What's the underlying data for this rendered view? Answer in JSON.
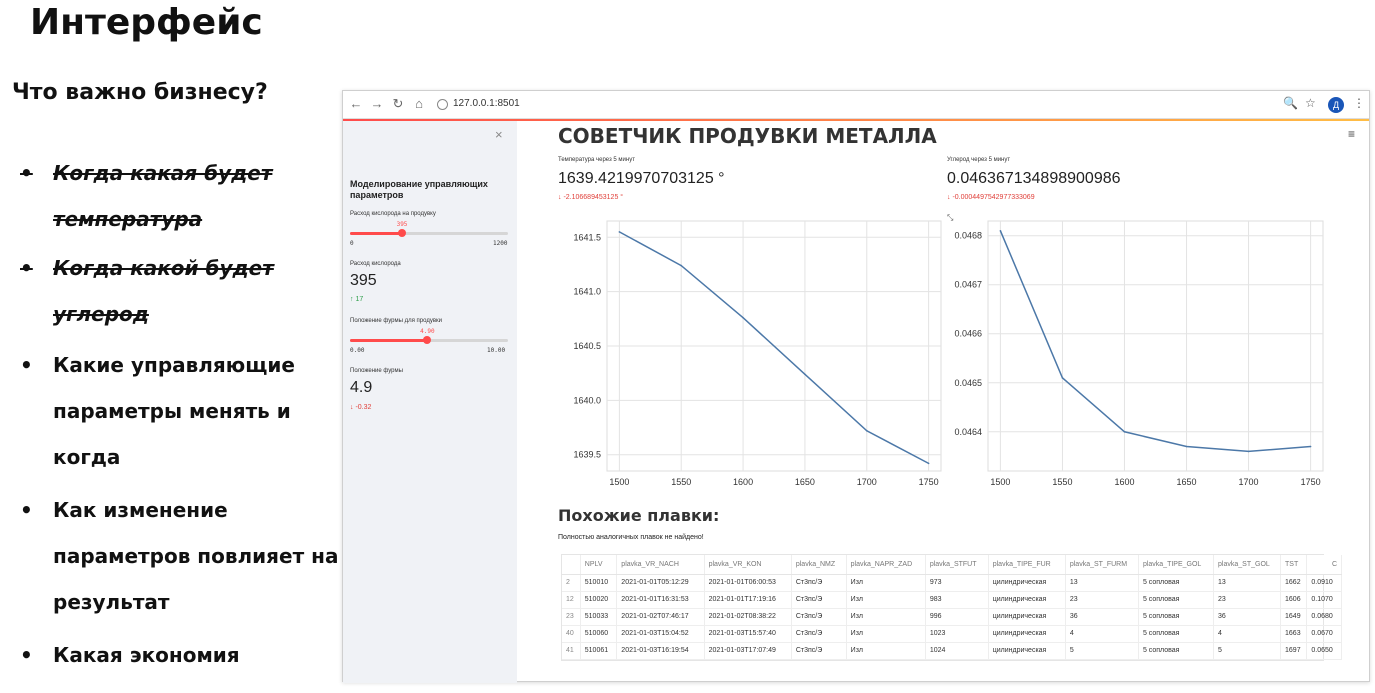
{
  "slide": {
    "title": "Интерфейс",
    "subtitle": "Что важно бизнесу?",
    "bullets": [
      {
        "bullet": "•",
        "text": "Когда какая будет\nтемпература",
        "struck": true
      },
      {
        "bullet": "•",
        "text": "Когда какой будет\nуглерод",
        "struck": true
      },
      {
        "bullet": "•",
        "text": "Какие управляющие\nпараметры менять и\nкогда",
        "struck": false
      },
      {
        "bullet": "•",
        "text": "Как изменение\nпараметров повлияет на\nрезультат",
        "struck": false
      },
      {
        "bullet": "•",
        "text": "Какая экономия",
        "struck": false
      }
    ]
  },
  "browser": {
    "url": "127.0.0.1:8501",
    "nav": {
      "back": "←",
      "forward": "→",
      "reload": "↻",
      "home": "⌂"
    },
    "icons": {
      "zoom": "🔍",
      "star": "☆",
      "menu": "⋮"
    },
    "avatar_letter": "Д"
  },
  "sidebar": {
    "close": "×",
    "heading": "Моделирование управляющих параметров",
    "oxygen_slider": {
      "label": "Расход кислорода на продувку",
      "value_text": "395",
      "min": "0",
      "max": "1200",
      "value": 395,
      "range": [
        0,
        1200
      ]
    },
    "oxygen_metric": {
      "label": "Расход кислорода",
      "value": "395",
      "delta": "↑ 17"
    },
    "lance_slider": {
      "label": "Положение фурмы для продувки",
      "value_text": "4.90",
      "min": "0.00",
      "max": "10.00",
      "value": 4.9,
      "range": [
        0,
        10
      ]
    },
    "lance_metric": {
      "label": "Положение фурмы",
      "value": "4.9",
      "delta": "↓ -0.32"
    }
  },
  "main": {
    "title": "СОВЕТЧИК ПРОДУВКИ МЕТАЛЛА",
    "hamburger": "≡",
    "expand_icon": "⤡",
    "temp_metric": {
      "label": "Температура через 5 минут",
      "value": "1639.4219970703125 °",
      "delta": "↓ -2.106689453125 °"
    },
    "carbon_metric": {
      "label": "Углерод через 5 минут",
      "value": "0.046367134898900986",
      "delta": "↓ -0.0004497542977333069"
    },
    "section_title": "Похожие плавки:",
    "section_note": "Полностью аналогичных плавок не найдено!",
    "table": {
      "columns": [
        "",
        "NPLV",
        "plavka_VR_NACH",
        "plavka_VR_KON",
        "plavka_NMZ",
        "plavka_NAPR_ZAD",
        "plavka_STFUT",
        "plavka_TIPE_FUR",
        "plavka_ST_FURM",
        "plavka_TIPE_GOL",
        "plavka_ST_GOL",
        "TST",
        "C"
      ],
      "rows": [
        [
          "2",
          "510010",
          "2021-01-01T05:12:29",
          "2021-01-01T06:00:53",
          "Ст3пс/Э",
          "Изл",
          "973",
          "цилиндрическая",
          "13",
          "5 сопловая",
          "13",
          "1662",
          "0.0910"
        ],
        [
          "12",
          "510020",
          "2021-01-01T16:31:53",
          "2021-01-01T17:19:16",
          "Ст3пс/Э",
          "Изл",
          "983",
          "цилиндрическая",
          "23",
          "5 сопловая",
          "23",
          "1606",
          "0.1070"
        ],
        [
          "23",
          "510033",
          "2021-01-02T07:46:17",
          "2021-01-02T08:38:22",
          "Ст3пс/Э",
          "Изл",
          "996",
          "цилиндрическая",
          "36",
          "5 сопловая",
          "36",
          "1649",
          "0.0680"
        ],
        [
          "40",
          "510060",
          "2021-01-03T15:04:52",
          "2021-01-03T15:57:40",
          "Ст3пс/Э",
          "Изл",
          "1023",
          "цилиндрическая",
          "4",
          "5 сопловая",
          "4",
          "1663",
          "0.0670"
        ],
        [
          "41",
          "510061",
          "2021-01-03T16:19:54",
          "2021-01-03T17:07:49",
          "Ст3пс/Э",
          "Изл",
          "1024",
          "цилиндрическая",
          "5",
          "5 сопловая",
          "5",
          "1697",
          "0.0650"
        ]
      ]
    }
  },
  "colors": {
    "accent": "#ff4b4b",
    "line": "#4c78a8",
    "sidebar_bg": "#f0f2f6",
    "delta_up": "#2e9e4a",
    "delta_down": "#e0403a"
  },
  "chart_data": [
    {
      "type": "line",
      "x": [
        1500,
        1550,
        1600,
        1650,
        1700,
        1750
      ],
      "y": [
        1641.55,
        1641.24,
        1640.76,
        1640.24,
        1639.72,
        1639.42
      ],
      "xlim": [
        1490,
        1760
      ],
      "ylim": [
        1639.35,
        1641.65
      ],
      "xticks": [
        "1500",
        "1550",
        "1600",
        "1650",
        "1700",
        "1750"
      ],
      "yticks": [
        1639.5,
        1640.0,
        1640.5,
        1641.0,
        1641.5
      ],
      "ytick_labels": [
        "1639.5",
        "1640.0",
        "1640.5",
        "1641.0",
        "1641.5"
      ],
      "grid": true
    },
    {
      "type": "line",
      "x": [
        1500,
        1550,
        1600,
        1650,
        1700,
        1750
      ],
      "y": [
        0.04681,
        0.04651,
        0.0464,
        0.04637,
        0.04636,
        0.04637
      ],
      "xlim": [
        1490,
        1760
      ],
      "ylim": [
        0.04632,
        0.04683
      ],
      "xticks": [
        "1500",
        "1550",
        "1600",
        "1650",
        "1700",
        "1750"
      ],
      "yticks": [
        0.0464,
        0.0465,
        0.0466,
        0.0467,
        0.0468
      ],
      "ytick_labels": [
        "0.0464",
        "0.0465",
        "0.0466",
        "0.0467",
        "0.0468"
      ],
      "grid": true
    }
  ]
}
